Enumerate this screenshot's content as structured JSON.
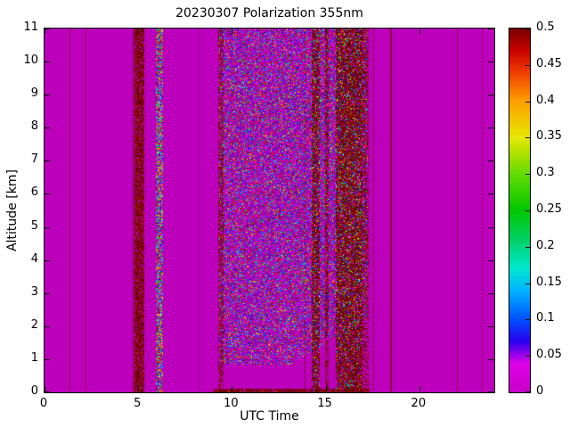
{
  "chart_data": {
    "type": "heatmap",
    "title": "20230307 Polarization 355nm",
    "xlabel": "UTC Time",
    "ylabel": "Altitude [km]",
    "x_range": [
      0,
      24
    ],
    "y_range": [
      0,
      11
    ],
    "x_ticks": [
      0,
      5,
      10,
      15,
      20
    ],
    "y_ticks": [
      0,
      1,
      2,
      3,
      4,
      5,
      6,
      7,
      8,
      9,
      10,
      11
    ],
    "grid": false,
    "legend": "colorbar-right",
    "base_value": 0,
    "base_color": "#BC00BC",
    "seed": 1234567,
    "colorbar": {
      "min": 0,
      "max": 0.5,
      "ticks": [
        0,
        0.05,
        0.1,
        0.15,
        0.2,
        0.25,
        0.3,
        0.35,
        0.4,
        0.45,
        0.5
      ],
      "tick_labels": [
        "0",
        "0.05",
        "0.1",
        "0.15",
        "0.2",
        "0.25",
        "0.3",
        "0.35",
        "0.4",
        "0.45",
        "0.5"
      ],
      "stops": [
        [
          0.0,
          "#C800C8"
        ],
        [
          0.04,
          "#E000E8"
        ],
        [
          0.07,
          "#2A00F0"
        ],
        [
          0.1,
          "#0050FF"
        ],
        [
          0.14,
          "#00B4FF"
        ],
        [
          0.17,
          "#00E8D2"
        ],
        [
          0.21,
          "#00D264"
        ],
        [
          0.25,
          "#00C800"
        ],
        [
          0.3,
          "#64DC00"
        ],
        [
          0.35,
          "#E8E800"
        ],
        [
          0.4,
          "#FFA000"
        ],
        [
          0.44,
          "#F03C00"
        ],
        [
          0.47,
          "#C80000"
        ],
        [
          0.5,
          "#780000"
        ]
      ]
    },
    "thin_line_color": "#6E0000",
    "thin_lines": [
      {
        "x": 1.35,
        "alpha": 0.6
      },
      {
        "x": 2.2,
        "alpha": 0.5
      },
      {
        "x": 4.72,
        "alpha": 0.7
      },
      {
        "x": 8.2,
        "alpha": 0.35
      },
      {
        "x": 13.9,
        "alpha": 0.6
      },
      {
        "x": 17.55,
        "alpha": 0.5
      },
      {
        "x": 18.42,
        "alpha": 0.65,
        "w": 2
      },
      {
        "x": 22.0,
        "alpha": 0.6
      },
      {
        "x": 23.35,
        "alpha": 0.4
      }
    ],
    "palettes": {
      "mix": [
        [
          "#1515E8",
          0.2
        ],
        [
          "#3A3AFF",
          0.1
        ],
        [
          "#00B4FF",
          0.08
        ],
        [
          "#00E8E8",
          0.06
        ],
        [
          "#00B400",
          0.06
        ],
        [
          "#55D400",
          0.04
        ],
        [
          "#E8E800",
          0.05
        ],
        [
          "#FF8800",
          0.05
        ],
        [
          "#E81500",
          0.1
        ],
        [
          "#8E0000",
          0.12
        ],
        [
          "#FF00FF",
          0.07
        ],
        [
          "#5A0060",
          0.07
        ]
      ],
      "bright": [
        [
          "#1515E8",
          0.18
        ],
        [
          "#00B4FF",
          0.12
        ],
        [
          "#00E8E8",
          0.1
        ],
        [
          "#00C800",
          0.12
        ],
        [
          "#E8E800",
          0.1
        ],
        [
          "#FF8800",
          0.08
        ],
        [
          "#E81500",
          0.12
        ],
        [
          "#8E0000",
          0.1
        ],
        [
          "#FF00FF",
          0.08
        ]
      ],
      "darkred": [
        [
          "#6E0000",
          0.4
        ],
        [
          "#8A0000",
          0.25
        ],
        [
          "#520000",
          0.2
        ],
        [
          "#A51500",
          0.1
        ],
        [
          "#C83200",
          0.05
        ]
      ],
      "darkred_mix": [
        [
          "#6E0000",
          0.34
        ],
        [
          "#8A0000",
          0.22
        ],
        [
          "#520000",
          0.14
        ],
        [
          "#C83200",
          0.06
        ],
        [
          "#1515E8",
          0.06
        ],
        [
          "#00C8FF",
          0.04
        ],
        [
          "#00C800",
          0.03
        ],
        [
          "#E8E800",
          0.04
        ],
        [
          "#FF00FF",
          0.04
        ],
        [
          "#E81500",
          0.03
        ]
      ]
    },
    "noise_regions": [
      {
        "x0": 9.35,
        "x1": 13.05,
        "alt0_start": 0.85,
        "alt0_end": 0.85,
        "alt1": 11,
        "density": 0.42,
        "palette": "mix"
      },
      {
        "x0": 13.05,
        "x1": 17.25,
        "alt0_start": 0.85,
        "alt0_end": 2.3,
        "alt1": 11,
        "density": 0.42,
        "palette": "mix"
      },
      {
        "x0": 9.3,
        "x1": 9.55,
        "alt0_start": 0,
        "alt0_end": 0,
        "alt1": 11,
        "density": 0.45,
        "palette": "darkred"
      },
      {
        "x0": 5.97,
        "x1": 6.28,
        "alt0_start": 0,
        "alt0_end": 0,
        "alt1": 11,
        "density": 0.7,
        "palette": "bright"
      },
      {
        "x0": 4.82,
        "x1": 5.28,
        "alt0_start": 0,
        "alt0_end": 0,
        "alt1": 11,
        "density": 0.8,
        "palette": "darkred"
      },
      {
        "x0": 14.28,
        "x1": 14.65,
        "alt0_start": 0,
        "alt0_end": 0,
        "alt1": 11,
        "density": 0.8,
        "palette": "darkred_mix"
      },
      {
        "x0": 14.98,
        "x1": 15.14,
        "alt0_start": 0,
        "alt0_end": 0,
        "alt1": 11,
        "density": 0.55,
        "palette": "darkred"
      },
      {
        "x0": 15.58,
        "x1": 16.9,
        "alt0_start": 0,
        "alt0_end": 0,
        "alt1": 11,
        "density": 0.85,
        "palette": "darkred_mix"
      },
      {
        "x0": 16.9,
        "x1": 17.28,
        "alt0_start": 0,
        "alt0_end": 0,
        "alt1": 11,
        "density": 0.45,
        "palette": "darkred"
      },
      {
        "x0": 9.0,
        "x1": 17.3,
        "alt0_start": 0,
        "alt0_end": 0,
        "alt1": 0.13,
        "density": 0.8,
        "palette": "darkred"
      }
    ]
  }
}
